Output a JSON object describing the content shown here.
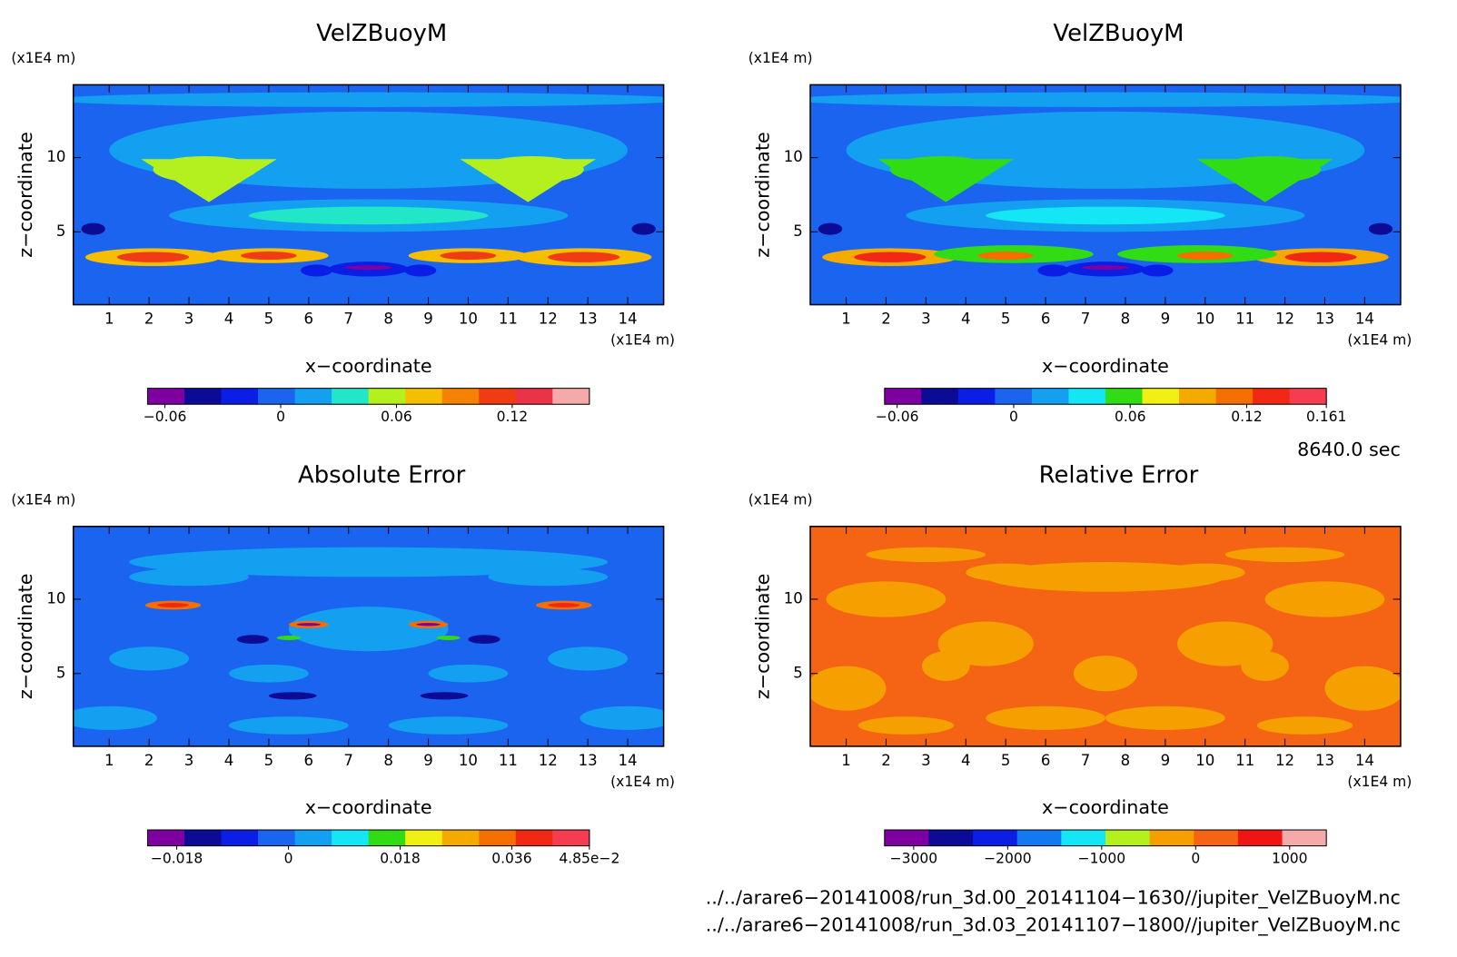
{
  "chart_data": [
    {
      "type": "contour",
      "title": "VelZBuoyM",
      "xlabel": "x−coordinate",
      "ylabel": "z−coordinate",
      "xunit": "(x1E4 m)",
      "yunit": "(x1E4 m)",
      "xlim": [
        0.1,
        14.9
      ],
      "ylim": [
        0.1,
        14.9
      ],
      "xticks": [
        1,
        2,
        3,
        4,
        5,
        6,
        7,
        8,
        9,
        10,
        11,
        12,
        13,
        14
      ],
      "yticks": [
        5,
        10
      ],
      "colorbar": {
        "clim": [
          -0.069,
          0.16
        ],
        "colors": [
          "#7f00a0",
          "#0b0b96",
          "#0a1ee6",
          "#1a64f0",
          "#14a0f0",
          "#22e6c8",
          "#b4f01e",
          "#f5be00",
          "#f58200",
          "#f03c14",
          "#eb3246",
          "#f5aaaa"
        ],
        "ticks": [
          -0.06,
          0,
          0.06,
          0.12
        ]
      }
    },
    {
      "type": "contour",
      "title": "VelZBuoyM",
      "xlabel": "x−coordinate",
      "ylabel": "z−coordinate",
      "xunit": "(x1E4 m)",
      "yunit": "(x1E4 m)",
      "xlim": [
        0.1,
        14.9
      ],
      "ylim": [
        0.1,
        14.9
      ],
      "xticks": [
        1,
        2,
        3,
        4,
        5,
        6,
        7,
        8,
        9,
        10,
        11,
        12,
        13,
        14
      ],
      "yticks": [
        5,
        10
      ],
      "colorbar": {
        "clim": [
          -0.0665,
          0.161
        ],
        "colors": [
          "#7f00a0",
          "#0b0b96",
          "#0a1ee6",
          "#1a64f0",
          "#14a0f0",
          "#14e6f5",
          "#32dc14",
          "#f0f014",
          "#f5aa00",
          "#f56e00",
          "#f02814",
          "#f53c50"
        ],
        "ticks": [
          -0.06,
          0,
          0.06,
          0.12,
          0.161
        ]
      }
    },
    {
      "type": "contour",
      "title": "Absolute Error",
      "xlabel": "x−coordinate",
      "ylabel": "z−coordinate",
      "xunit": "(x1E4 m)",
      "yunit": "(x1E4 m)",
      "xlim": [
        0.1,
        14.9
      ],
      "ylim": [
        0.1,
        14.9
      ],
      "xticks": [
        1,
        2,
        3,
        4,
        5,
        6,
        7,
        8,
        9,
        10,
        11,
        12,
        13,
        14
      ],
      "yticks": [
        5,
        10
      ],
      "colorbar": {
        "clim": [
          -0.0227,
          0.0485
        ],
        "colors": [
          "#7f00a0",
          "#0b0b96",
          "#0a1ee6",
          "#1a64f0",
          "#14a0f0",
          "#14e6f5",
          "#32dc14",
          "#f0f014",
          "#f5aa00",
          "#f56e00",
          "#f02814",
          "#f53c50"
        ],
        "ticks": [
          -0.018,
          0,
          0.018,
          0.036,
          {
            "value": 0.0485,
            "label": "4.85e-2"
          }
        ]
      }
    },
    {
      "type": "contour",
      "title": "Relative Error",
      "xlabel": "x−coordinate",
      "ylabel": "z−coordinate",
      "xunit": "(x1E4 m)",
      "yunit": "(x1E4 m)",
      "xlim": [
        0.1,
        14.9
      ],
      "ylim": [
        0.1,
        14.9
      ],
      "xticks": [
        1,
        2,
        3,
        4,
        5,
        6,
        7,
        8,
        9,
        10,
        11,
        12,
        13,
        14
      ],
      "yticks": [
        5,
        10
      ],
      "colorbar": {
        "clim": [
          -3310,
          1390
        ],
        "colors": [
          "#7f00a0",
          "#0b0b96",
          "#0a1ee6",
          "#1478f0",
          "#14e6f5",
          "#b4f01e",
          "#f5a000",
          "#f56414",
          "#f01414",
          "#f5aaaa"
        ],
        "ticks": [
          -3000,
          -2000,
          -1000,
          0,
          1000
        ]
      }
    }
  ],
  "time": "8640.0 sec",
  "files": [
    "../../arare6−20141008/run_3d.00_20141104−1630//jupiter_VelZBuoyM.nc",
    "../../arare6−20141008/run_3d.03_20141107−1800//jupiter_VelZBuoyM.nc"
  ]
}
